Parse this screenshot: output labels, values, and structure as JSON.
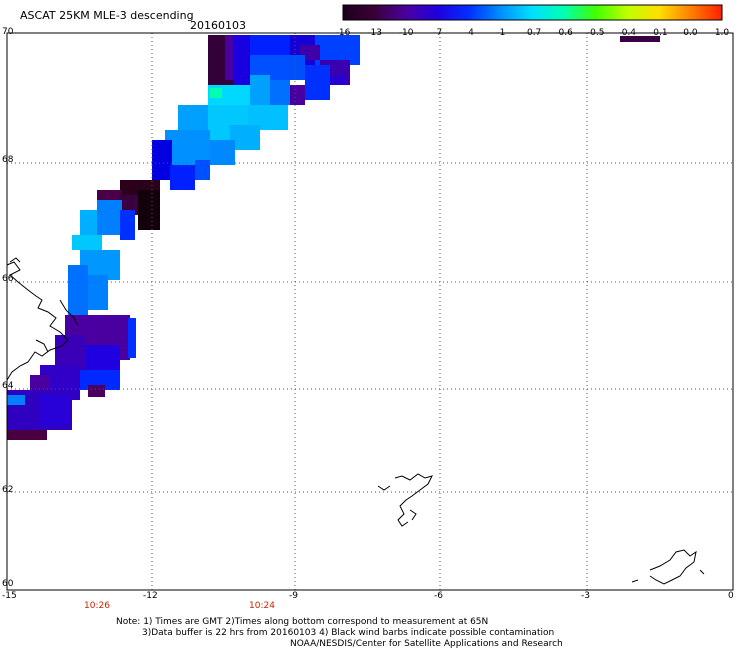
{
  "header": {
    "title": "ASCAT 25KM MLE-3 descending",
    "date": "20160103"
  },
  "colorbar": {
    "labels": [
      "-16",
      "-13",
      "-10",
      "-7",
      "-4",
      "-1",
      "-0.7",
      "-0.6",
      "-0.5",
      "-0.4",
      "-0.1",
      "0.0",
      "1.0"
    ],
    "colors": [
      "#1a0018",
      "#3b0038",
      "#4a00a0",
      "#2000e0",
      "#0030ff",
      "#0090ff",
      "#00e0ff",
      "#00ffb0",
      "#40ff00",
      "#c0ff00",
      "#ffe000",
      "#ff8000",
      "#ff2000"
    ]
  },
  "map": {
    "lat_labels": [
      "70",
      "68",
      "66",
      "64",
      "62",
      "60"
    ],
    "lon_labels": [
      "-15",
      "-12",
      "-9",
      "-6",
      "-3",
      "0"
    ],
    "time_labels": [
      "10:26",
      "10:24"
    ]
  },
  "notes": {
    "line1": "Note: 1) Times are GMT 2)Times along bottom correspond to measurement at 65N",
    "line2": "3)Data buffer is 22 hrs from 20160103 4) Black wind barbs indicate possible contamination",
    "line3": "NOAA/NESDIS/Center for Satellite Applications and Research"
  }
}
